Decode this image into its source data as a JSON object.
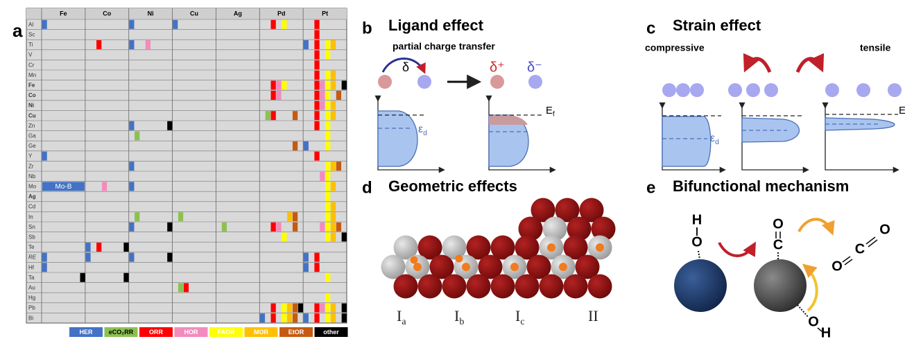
{
  "panel_a": {
    "label": "a",
    "columns": [
      "Fe",
      "Co",
      "Ni",
      "Cu",
      "Ag",
      "Pd",
      "Pt"
    ],
    "rows": [
      {
        "label": "Al",
        "marks": [
          [
            "Fe",
            "HER"
          ],
          [
            "Ni",
            "HER"
          ],
          [
            "Cu",
            "HER"
          ],
          [
            "Pd",
            "ORR"
          ],
          [
            "Pd",
            "FAOR"
          ],
          [
            "Pt",
            "ORR"
          ]
        ]
      },
      {
        "label": "Sc",
        "marks": [
          [
            "Pt",
            "ORR"
          ]
        ]
      },
      {
        "label": "Ti",
        "marks": [
          [
            "Co",
            "ORR"
          ],
          [
            "Ni",
            "HER"
          ],
          [
            "Ni",
            "HOR"
          ],
          [
            "Pt",
            "HER"
          ],
          [
            "Pt",
            "ORR"
          ],
          [
            "Pt",
            "FAOR"
          ],
          [
            "Pt",
            "MOR"
          ]
        ]
      },
      {
        "label": "V",
        "marks": [
          [
            "Pt",
            "ORR"
          ],
          [
            "Pt",
            "FAOR"
          ]
        ]
      },
      {
        "label": "Cr",
        "marks": [
          [
            "Pt",
            "ORR"
          ]
        ]
      },
      {
        "label": "Mn",
        "marks": [
          [
            "Pt",
            "ORR"
          ],
          [
            "Pt",
            "FAOR"
          ],
          [
            "Pt",
            "MOR"
          ]
        ]
      },
      {
        "label": "Fe",
        "font_style": "bold",
        "marks": [
          [
            "Pd",
            "ORR"
          ],
          [
            "Pd",
            "HOR"
          ],
          [
            "Pd",
            "FAOR"
          ],
          [
            "Pt",
            "ORR"
          ],
          [
            "Pt",
            "HOR"
          ],
          [
            "Pt",
            "FAOR"
          ],
          [
            "Pt",
            "MOR"
          ],
          [
            "Pt",
            "other"
          ]
        ]
      },
      {
        "label": "Co",
        "font_style": "bold",
        "marks": [
          [
            "Pd",
            "ORR"
          ],
          [
            "Pd",
            "HOR"
          ],
          [
            "Pt",
            "ORR"
          ],
          [
            "Pt",
            "HOR"
          ],
          [
            "Pt",
            "FAOR"
          ],
          [
            "Pt",
            "EtOR"
          ]
        ]
      },
      {
        "label": "Ni",
        "font_style": "bold",
        "marks": [
          [
            "Pt",
            "ORR"
          ],
          [
            "Pt",
            "HOR"
          ],
          [
            "Pt",
            "FAOR"
          ],
          [
            "Pt",
            "MOR"
          ]
        ]
      },
      {
        "label": "Cu",
        "font_style": "bold",
        "marks": [
          [
            "Pd",
            "eCO2RR"
          ],
          [
            "Pd",
            "ORR"
          ],
          [
            "Pd",
            "EtOR"
          ],
          [
            "Pt",
            "ORR"
          ],
          [
            "Pt",
            "FAOR"
          ],
          [
            "Pt",
            "MOR"
          ]
        ]
      },
      {
        "label": "Zn",
        "marks": [
          [
            "Ni",
            "HER"
          ],
          [
            "Ni",
            "other"
          ],
          [
            "Pt",
            "ORR"
          ],
          [
            "Pt",
            "FAOR"
          ]
        ]
      },
      {
        "label": "Ga",
        "marks": [
          [
            "Ni",
            "eCO2RR"
          ],
          [
            "Pt",
            "FAOR"
          ]
        ]
      },
      {
        "label": "Ge",
        "marks": [
          [
            "Pd",
            "EtOR"
          ],
          [
            "Pt",
            "HER"
          ],
          [
            "Pt",
            "FAOR"
          ]
        ]
      },
      {
        "label": "Y",
        "marks": [
          [
            "Fe",
            "HER"
          ],
          [
            "Pt",
            "ORR"
          ]
        ]
      },
      {
        "label": "Zr",
        "marks": [
          [
            "Ni",
            "HER"
          ],
          [
            "Pt",
            "FAOR"
          ],
          [
            "Pt",
            "MOR"
          ],
          [
            "Pt",
            "EtOR"
          ]
        ]
      },
      {
        "label": "Nb",
        "marks": [
          [
            "Pt",
            "HOR"
          ],
          [
            "Pt",
            "FAOR"
          ]
        ]
      },
      {
        "label": "Mo",
        "marks": [
          [
            "Co",
            "HOR"
          ],
          [
            "Ni",
            "HER"
          ],
          [
            "Pt",
            "FAOR"
          ],
          [
            "Pt",
            "MOR"
          ]
        ]
      },
      {
        "label": "Ag",
        "font_style": "bold",
        "marks": [
          [
            "Pt",
            "FAOR"
          ]
        ]
      },
      {
        "label": "Cd",
        "marks": [
          [
            "Pt",
            "FAOR"
          ],
          [
            "Pt",
            "MOR"
          ]
        ]
      },
      {
        "label": "In",
        "marks": [
          [
            "Ni",
            "eCO2RR"
          ],
          [
            "Cu",
            "eCO2RR"
          ],
          [
            "Pd",
            "MOR"
          ],
          [
            "Pd",
            "EtOR"
          ],
          [
            "Pt",
            "FAOR"
          ],
          [
            "Pt",
            "MOR"
          ]
        ]
      },
      {
        "label": "Sn",
        "marks": [
          [
            "Ni",
            "HER"
          ],
          [
            "Ni",
            "other"
          ],
          [
            "Ag",
            "eCO2RR"
          ],
          [
            "Pd",
            "ORR"
          ],
          [
            "Pd",
            "HOR"
          ],
          [
            "Pd",
            "EtOR"
          ],
          [
            "Pt",
            "HOR"
          ],
          [
            "Pt",
            "FAOR"
          ],
          [
            "Pt",
            "MOR"
          ],
          [
            "Pt",
            "EtOR"
          ]
        ]
      },
      {
        "label": "Sb",
        "marks": [
          [
            "Pd",
            "FAOR"
          ],
          [
            "Pt",
            "FAOR"
          ],
          [
            "Pt",
            "MOR"
          ],
          [
            "Pt",
            "other"
          ]
        ]
      },
      {
        "label": "Te",
        "marks": [
          [
            "Co",
            "HER"
          ],
          [
            "Co",
            "ORR"
          ],
          [
            "Co",
            "other"
          ]
        ]
      },
      {
        "label": "RE",
        "font_style": "italic",
        "marks": [
          [
            "Fe",
            "HER"
          ],
          [
            "Co",
            "HER"
          ],
          [
            "Ni",
            "HER"
          ],
          [
            "Ni",
            "other"
          ],
          [
            "Pt",
            "HER"
          ],
          [
            "Pt",
            "ORR"
          ]
        ]
      },
      {
        "label": "Hf",
        "marks": [
          [
            "Fe",
            "HER"
          ],
          [
            "Pt",
            "HER"
          ],
          [
            "Pt",
            "ORR"
          ]
        ]
      },
      {
        "label": "Ta",
        "marks": [
          [
            "Fe",
            "other"
          ],
          [
            "Co",
            "other"
          ],
          [
            "Pt",
            "FAOR"
          ]
        ]
      },
      {
        "label": "Au",
        "marks": [
          [
            "Cu",
            "eCO2RR"
          ],
          [
            "Cu",
            "ORR"
          ]
        ]
      },
      {
        "label": "Hg",
        "marks": [
          [
            "Pt",
            "FAOR"
          ]
        ]
      },
      {
        "label": "Pb",
        "marks": [
          [
            "Pd",
            "ORR"
          ],
          [
            "Pd",
            "FAOR"
          ],
          [
            "Pd",
            "MOR"
          ],
          [
            "Pd",
            "EtOR"
          ],
          [
            "Pd",
            "other"
          ],
          [
            "Pt",
            "ORR"
          ],
          [
            "Pt",
            "HOR"
          ],
          [
            "Pt",
            "FAOR"
          ],
          [
            "Pt",
            "MOR"
          ],
          [
            "Pt",
            "other"
          ]
        ]
      },
      {
        "label": "Bi",
        "marks": [
          [
            "Pd",
            "HER"
          ],
          [
            "Pd",
            "ORR"
          ],
          [
            "Pd",
            "FAOR"
          ],
          [
            "Pd",
            "MOR"
          ],
          [
            "Pd",
            "EtOR"
          ],
          [
            "Pt",
            "HER"
          ],
          [
            "Pt",
            "ORR"
          ],
          [
            "Pt",
            "FAOR"
          ],
          [
            "Pt",
            "MOR"
          ],
          [
            "Pt",
            "other"
          ]
        ]
      }
    ],
    "annotation": {
      "row": "Mo",
      "column": "Fe",
      "text": "Mo-B",
      "color": "#4472c4"
    },
    "legend": [
      {
        "key": "HER",
        "name": "HER",
        "color": "#4472c4",
        "text_color": "#ffffff"
      },
      {
        "key": "eCO2RR",
        "name": "eCO₂RR",
        "color": "#8cc152",
        "text_color": "#000000"
      },
      {
        "key": "ORR",
        "name": "ORR",
        "color": "#ff0000",
        "text_color": "#ffffff"
      },
      {
        "key": "HOR",
        "name": "HOR",
        "color": "#f38bbf",
        "text_color": "#ffffff"
      },
      {
        "key": "FAOR",
        "name": "FAOR",
        "color": "#ffff00",
        "text_color": "#ffffff"
      },
      {
        "key": "MOR",
        "name": "MOR",
        "color": "#ffc000",
        "text_color": "#ffffff"
      },
      {
        "key": "EtOR",
        "name": "EtOR",
        "color": "#c55a11",
        "text_color": "#ffffff"
      },
      {
        "key": "other",
        "name": "other",
        "color": "#000000",
        "text_color": "#ffffff"
      }
    ]
  },
  "panel_b": {
    "label": "b",
    "title": "Ligand effect",
    "subtitle": "partial charge transfer",
    "delta": "δ",
    "delta_plus": "δ⁺",
    "delta_minus": "δ⁻",
    "epsilon": {
      "symbol": "ε",
      "subscript": "d"
    },
    "fermi": {
      "symbol": "E",
      "subscript": "f"
    }
  },
  "panel_c": {
    "label": "c",
    "title": "Strain effect",
    "left_label": "compressive",
    "right_label": "tensile",
    "epsilon": {
      "symbol": "ε",
      "subscript": "d"
    },
    "fermi": "E"
  },
  "panel_d": {
    "label": "d",
    "title": "Geometric effects",
    "sites": [
      {
        "symbol": "I",
        "subscript": "a"
      },
      {
        "symbol": "I",
        "subscript": "b"
      },
      {
        "symbol": "I",
        "subscript": "c"
      },
      {
        "symbol": "II"
      }
    ]
  },
  "panel_e": {
    "label": "e",
    "title": "Bifunctional mechanism",
    "hydroxyl": [
      "H",
      "O"
    ],
    "adsorbed_co": [
      "O",
      "C"
    ],
    "co2": [
      "O",
      "C",
      "O"
    ],
    "lower_hydroxyl": [
      "O",
      "H"
    ]
  }
}
